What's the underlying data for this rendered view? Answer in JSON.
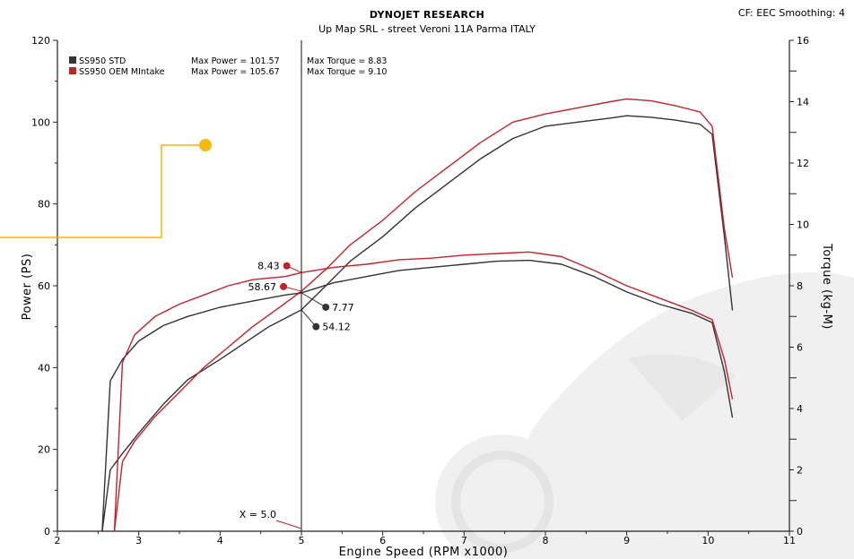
{
  "header": {
    "title": "DYNOJET RESEARCH",
    "subtitle": "Up Map SRL - street Veroni 11A Parma ITALY",
    "top_right": "CF: EEC  Smoothing: 4"
  },
  "legend": {
    "rows": [
      {
        "name": "SS950 STD",
        "power": "Max Power = 101.57",
        "torque": "Max Torque = 8.83",
        "color": "#333333"
      },
      {
        "name": "SS950 OEM MIntake",
        "power": "Max Power = 105.67",
        "torque": "Max Torque = 9.10",
        "color": "#c0242b"
      }
    ]
  },
  "chart_data": {
    "type": "line",
    "title": "DYNOJET RESEARCH",
    "subtitle": "Up Map SRL - street Veroni 11A Parma ITALY",
    "xlabel": "Engine Speed (RPM x1000)",
    "ylabel": "Power (PS)",
    "y2label": "Torque (kg-M)",
    "xlim": [
      2,
      11
    ],
    "ylim": [
      0,
      120
    ],
    "y2lim": [
      0,
      16
    ],
    "x_ticks": [
      "2",
      "3",
      "4",
      "5",
      "6",
      "7",
      "8",
      "9",
      "10",
      "11"
    ],
    "y_ticks": [
      "0",
      "20",
      "40",
      "60",
      "80",
      "100",
      "120"
    ],
    "y2_ticks": [
      "0",
      "2",
      "4",
      "6",
      "8",
      "10",
      "12",
      "14",
      "16"
    ],
    "grid": false,
    "legend_position": "top-left",
    "series": [
      {
        "name": "SS950 STD",
        "axis": "power",
        "color": "#333333",
        "x": [
          2.55,
          2.65,
          2.8,
          3.0,
          3.3,
          3.6,
          4.0,
          4.3,
          4.6,
          5.0,
          5.3,
          5.6,
          6.0,
          6.4,
          6.8,
          7.2,
          7.6,
          8.0,
          8.4,
          8.8,
          9.0,
          9.3,
          9.6,
          9.9,
          10.05,
          10.2,
          10.3
        ],
        "y": [
          0,
          15,
          19,
          24,
          31,
          37,
          42,
          46,
          50,
          54.12,
          60,
          66,
          72,
          79,
          85,
          91,
          96,
          99,
          100,
          101,
          101.57,
          101.2,
          100.5,
          99.5,
          97,
          72,
          54
        ]
      },
      {
        "name": "SS950 OEM MIntake",
        "axis": "power",
        "color": "#c0242b",
        "x": [
          2.7,
          2.8,
          2.95,
          3.2,
          3.5,
          3.8,
          4.1,
          4.4,
          4.75,
          5.0,
          5.3,
          5.6,
          6.0,
          6.4,
          6.8,
          7.2,
          7.6,
          8.0,
          8.4,
          8.8,
          9.0,
          9.3,
          9.6,
          9.9,
          10.05,
          10.2,
          10.3
        ],
        "y": [
          0,
          17,
          22,
          28,
          34,
          40,
          45,
          50,
          55,
          58.67,
          64,
          70,
          76,
          83,
          89,
          95,
          100,
          102,
          103.5,
          105,
          105.67,
          105.2,
          104,
          102.5,
          99,
          74,
          62
        ]
      },
      {
        "name": "SS950 STD",
        "axis": "torque",
        "color": "#333333",
        "x": [
          2.55,
          2.65,
          2.8,
          3.0,
          3.3,
          3.6,
          4.0,
          4.4,
          4.8,
          5.0,
          5.4,
          5.8,
          6.2,
          6.6,
          7.0,
          7.4,
          7.8,
          8.2,
          8.6,
          9.0,
          9.4,
          9.8,
          10.05,
          10.2,
          10.3
        ],
        "y": [
          0,
          4.9,
          5.6,
          6.2,
          6.7,
          7.0,
          7.3,
          7.5,
          7.7,
          7.77,
          8.1,
          8.3,
          8.5,
          8.6,
          8.7,
          8.8,
          8.83,
          8.7,
          8.3,
          7.8,
          7.4,
          7.1,
          6.8,
          5.2,
          3.7
        ]
      },
      {
        "name": "SS950 OEM MIntake",
        "axis": "torque",
        "color": "#c0242b",
        "x": [
          2.7,
          2.8,
          2.95,
          3.2,
          3.5,
          3.8,
          4.1,
          4.4,
          4.8,
          5.0,
          5.4,
          5.8,
          6.2,
          6.6,
          7.0,
          7.4,
          7.8,
          8.2,
          8.6,
          9.0,
          9.4,
          9.8,
          10.05,
          10.2,
          10.3
        ],
        "y": [
          0,
          5.5,
          6.4,
          7.0,
          7.4,
          7.7,
          8.0,
          8.2,
          8.3,
          8.43,
          8.6,
          8.7,
          8.85,
          8.9,
          9.0,
          9.05,
          9.1,
          8.95,
          8.5,
          8.0,
          7.6,
          7.2,
          6.9,
          5.6,
          4.3
        ]
      }
    ],
    "cursor": {
      "x": 5.0,
      "label": "X = 5.0"
    },
    "annotations": [
      {
        "label": "8.43",
        "x": 4.82,
        "y": 8.65,
        "axis": "torque",
        "color": "#c0242b",
        "side": "left"
      },
      {
        "label": "58.67",
        "x": 4.78,
        "y": 59.8,
        "axis": "power",
        "color": "#c0242b",
        "side": "left"
      },
      {
        "label": "7.77",
        "x": 5.3,
        "y": 7.3,
        "axis": "torque",
        "color": "#333333",
        "side": "right"
      },
      {
        "label": "54.12",
        "x": 5.18,
        "y": 50,
        "axis": "power",
        "color": "#333333",
        "side": "right"
      }
    ]
  }
}
